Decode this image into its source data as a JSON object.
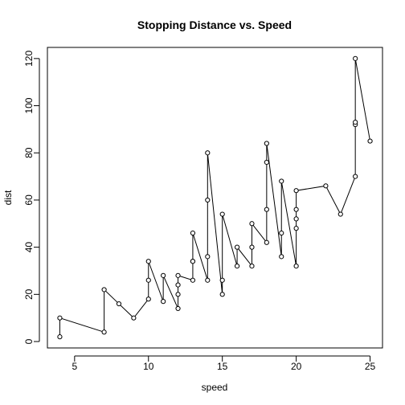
{
  "chart_data": {
    "type": "line",
    "title": "Stopping Distance vs. Speed",
    "xlabel": "speed",
    "ylabel": "dist",
    "xlim": [
      3.16,
      25.84
    ],
    "ylim": [
      -2.72,
      124.72
    ],
    "x_ticks": [
      5,
      10,
      15,
      20,
      25
    ],
    "y_ticks": [
      0,
      20,
      40,
      60,
      80,
      100,
      120
    ],
    "grid": false,
    "legend": "none",
    "markers": "open-circle",
    "line_color": "#000000",
    "series": [
      {
        "x": [
          4,
          4,
          7,
          7,
          8,
          9,
          10,
          10,
          10,
          11,
          11,
          12,
          12,
          12,
          12,
          13,
          13,
          13,
          13,
          14,
          14,
          14,
          14,
          15,
          15,
          15,
          16,
          16,
          17,
          17,
          17,
          18,
          18,
          18,
          18,
          19,
          19,
          19,
          20,
          20,
          20,
          20,
          20,
          22,
          23,
          24,
          24,
          24,
          24,
          25
        ],
        "y": [
          2,
          10,
          4,
          22,
          16,
          10,
          18,
          26,
          34,
          17,
          28,
          14,
          20,
          24,
          28,
          26,
          34,
          34,
          46,
          26,
          36,
          60,
          80,
          20,
          26,
          54,
          32,
          40,
          32,
          40,
          50,
          42,
          56,
          76,
          84,
          36,
          46,
          68,
          32,
          48,
          52,
          56,
          64,
          66,
          54,
          70,
          92,
          93,
          120,
          85
        ]
      }
    ]
  }
}
